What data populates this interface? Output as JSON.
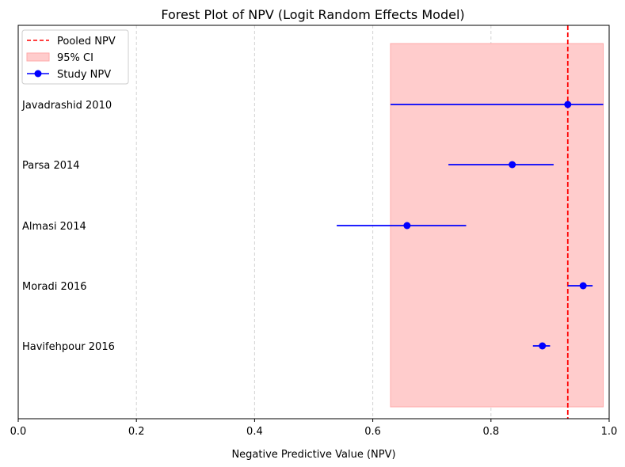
{
  "chart_data": {
    "type": "forest",
    "title": "Forest Plot of NPV (Logit Random Effects Model)",
    "xlabel": "Negative Predictive Value (NPV)",
    "ylabel": "",
    "xlim": [
      0.0,
      1.0
    ],
    "xticks": [
      0.0,
      0.2,
      0.4,
      0.6,
      0.8,
      1.0
    ],
    "xtick_labels": [
      "0.0",
      "0.2",
      "0.4",
      "0.6",
      "0.8",
      "1.0"
    ],
    "grid": "vertical dashed",
    "legend_position": "top-left",
    "legend": {
      "pooled_label": "Pooled NPV",
      "ci_label": "95% CI",
      "study_label": "Study NPV"
    },
    "pooled": {
      "npv": 0.93,
      "ci_low": 0.63,
      "ci_high": 0.99
    },
    "studies": [
      {
        "name": "Javadrashid 2010",
        "npv": 0.93,
        "ci_low": 0.63,
        "ci_high": 0.99
      },
      {
        "name": "Parsa 2014",
        "npv": 0.836,
        "ci_low": 0.728,
        "ci_high": 0.906
      },
      {
        "name": "Almasi 2014",
        "npv": 0.658,
        "ci_low": 0.539,
        "ci_high": 0.758
      },
      {
        "name": "Moradi 2016",
        "npv": 0.956,
        "ci_low": 0.93,
        "ci_high": 0.972
      },
      {
        "name": "Havifehpour 2016",
        "npv": 0.887,
        "ci_low": 0.871,
        "ci_high": 0.9
      }
    ],
    "colors": {
      "pooled": "#ff0000",
      "ci_fill": "#ffcccc",
      "ci_edge": "#ffaaaa",
      "study": "#0000ff"
    }
  }
}
